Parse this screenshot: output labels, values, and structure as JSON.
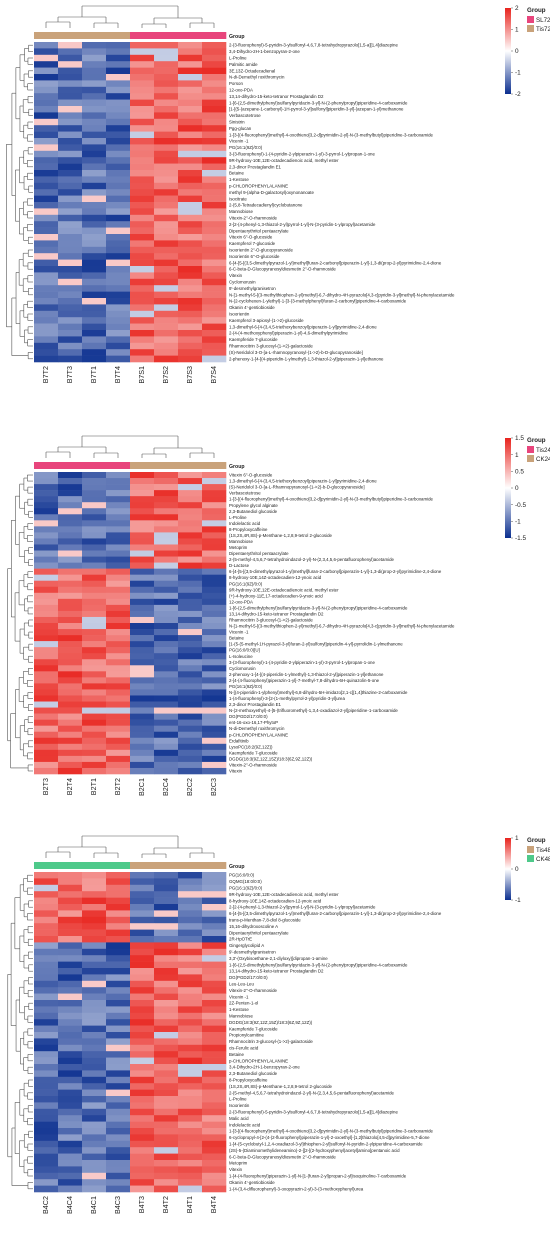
{
  "chart_data": [
    {
      "type": "heatmap",
      "group_title": "Group",
      "groups": [
        {
          "name": "SL72",
          "color": "#e8457c"
        },
        {
          "name": "Tis72",
          "color": "#c9a27a"
        }
      ],
      "sample_groups": [
        "Tis72",
        "Tis72",
        "Tis72",
        "Tis72",
        "SL72",
        "SL72",
        "SL72",
        "SL72"
      ],
      "columns": [
        "B7T2",
        "B7T3",
        "B7T1",
        "B7T4",
        "B7S1",
        "B7S2",
        "B7S3",
        "B7S4"
      ],
      "scale": {
        "min": -2,
        "max": 2,
        "ticks": [
          2,
          1,
          0,
          -1,
          -2
        ]
      },
      "rows": [
        "2-(3-fluorophenyl)-5-pyridin-3-ylsulfonyl-4,6,7,8-tetrahydropyrazolo[1,5-a][1,4]diazepine",
        "3,4-Dihydro-2H-1-benzopyran-2-one",
        "L-Proline",
        "Palmitic amide",
        "3E,13Z-Octadecadienal",
        "N-di-Demethyl roxithromycin",
        "Porson",
        "12-oxo-PDA",
        "13,14-dihydro-15-keto-tetranor Prostaglandin D2",
        "1-[6-(2,5-dimethylphenyl)sulfanylpyridazin-3-yl]-N-(2-phenylpropyl)piperidine-4-carboxamide",
        "[1-[(5-(azepane-1-carbonyl)-1H-pyrrol-3-yl]sulfonyl]piperidin-3-yl]-(azepan-1-yl)methanone",
        "Verbascotetrose",
        "Sinistrin",
        "Pgg-glucan",
        "1-[3-[(4-fluorophenyl)methyl]-4-oxothieno[3,2-d]pyrimidin-2-yl]-N-(3-methylbutyl)piperidine-3-carboxamide",
        "Vicenin -1",
        "PG(16:1(9Z)/0:0)",
        "3-(3-fluorophenyl)-1-(4-pyridin-2-ylpiperazin-1-yl)-3-pyrrol-1-ylpropan-1-one",
        "9R-hydroxy-10E,12E-octadecadienoic acid, methyl ester",
        "2,3-dinor Prostaglandin E1",
        "Betaine",
        "1-Kestose",
        "p-CHLOROPHENYLALANINE",
        "methyl 9-(alpha-D-galactosyl)oxynonanoate",
        "Isocitrate",
        "2-(5,8-Tetradecadienyl)cyclobutanone",
        "Mannobiose",
        "Vitexin-2''-O-rhamnoside",
        "2-[2-(4-phenyl-1,3-thiazol-2-yl)pyrrol-1-yl]-N-(3-pyridin-1-ylpropyl)acetamide",
        "Dipentaerythritol pentaacrylate",
        "Vitexin 6''-O-glucoside",
        "Kaempferol 7-glucoside",
        "Isoorientin 2''-O-glucopyranoside",
        "Isoorientin 6''-O-glucoside",
        "6-[4-[5-[(3,5-dimethylpyrazol-1-yl)methyl]furan-2-carbonyl]piperazin-1-yl]-1,3-di(prop-2-yl)pyrimidine-2,4-dione",
        "6-C-beta-D-Glucopyranosyldiosmetin 2''-O-rhamnoside",
        "Vitexin",
        "Cyclomorusin",
        "9'-desmethylgranisetron",
        "N-[1-methyl-5-[(3-methylthiophen-2-yl)methyl]-6,7-dihydro-4H-pyrazolo[4,3-c]pyridin-3-yl]methyl]-N-phenylacetamide",
        "N-(2-cyclohexen-1-ylethyl)-1-[3-(3-methylphenyl)furan-2-carbonyl]piperidine-4-carboxamide",
        "Okanin 4'-gentiobioside",
        "Isoorientin",
        "Kaempferol 3-apiosyl-(1->2)-glucoside",
        "1,3-dimethyl-6-[4-(3,4,5-triethoxybenzoyl)piperazin-1-yl]pyrimidine-2,4-dione",
        "2-(4-(4-methoxyphenyl)piperazin-1-yl)-4,6-dimethylpyrimidine",
        "Kaempferide 7-glucoside",
        "Rhamnocitrin 3-glucosyl-(1->2)-galactoside",
        "(S)-Neridolol 3-O-[a-L-rhamnopyranosyl-(1->2)-b-D-glucopyranoside]",
        "2-phenoxy-1-[4-[(4-piperidin-1-ylmethyl)-1,3-thiazol-2-yl]piperazin-1-yl]ethanone"
      ],
      "pattern": [
        -1,
        -1,
        -1,
        -1,
        1,
        1,
        1,
        1
      ]
    },
    {
      "type": "heatmap",
      "group_title": "Group",
      "groups": [
        {
          "name": "Tis24",
          "color": "#e8457c"
        },
        {
          "name": "CK24",
          "color": "#c9a27a"
        }
      ],
      "sample_groups": [
        "Tis24",
        "Tis24",
        "Tis24",
        "Tis24",
        "CK24",
        "CK24",
        "CK24",
        "CK24"
      ],
      "columns": [
        "B2T3",
        "B2T4",
        "B2T1",
        "B2T2",
        "B2C1",
        "B2C4",
        "B2C2",
        "B2C3"
      ],
      "scale": {
        "min": -1.5,
        "max": 1.5,
        "ticks": [
          1.5,
          1,
          0.5,
          0,
          -0.5,
          -1,
          -1.5
        ]
      },
      "rows": [
        "Vitexin 6''-O-glucoside",
        "1,3-dimethyl-6-[4-(3,4,5-triethoxybenzoyl)piperazin-1-yl]pyrimidine-2,4-dione",
        "(S)-Neridolol 3-O-[a-L-Rhamnopyranosyl-(1->2)-b-D-glucopyranoside]",
        "Verbascotetrose",
        "1-[3-[(4-fluorophenyl)methyl]-4-oxothieno[3,2-d]pyrimidin-2-yl]-N-(3-methylbutyl)piperidine-3-carboxamide",
        "Propylene glycol alginate",
        "2,3-Butanediol glucoside",
        "L-Proline",
        "Indolelactic acid",
        "8-Propyloxycaffeine",
        "(1S,2S,4R,8S)-p-Menthane-1,2,8,9-tetrol 2-glucoside",
        "Mannobiose",
        "Metoprim",
        "Dipentaerythritol pentaacrylate",
        "2-(5-methyl-4,5,6,7-tetrahydroindazol-2-yl)-N-(2,3,4,5,6-pentafluorophenyl)acetamide",
        "D-Lactose",
        "6-[4-[5-[(3,5-dimethylpyrazol-1-yl)methyl]furan-2-carbonyl]piperazin-1-yl]-1,3-di(prop-2-yl)pyrimidine-2,4-dione",
        "8-hydroxy-10E,14Z-octadecadien-12-ynoic acid",
        "PG(16:1(9Z)/0:0)",
        "9R-hydroxy-10E,12E-octadecadienoic acid, methyl ester",
        "(+)-4-hydroxy-11E,17-octadecadien-9-ynoic acid",
        "12-oxo-PDA",
        "1-[6-(2,5-dimethylphenyl)sulfanylpyridazin-3-yl]-N-(2-phenylpropyl)piperidine-4-carboxamide",
        "13,14-dihydro-15-keto-tetranor Prostaglandin D2",
        "Rhamnocitrin 3-glucosyl-(1->2)-galactoside",
        "N-[1-methyl-5-[(3-methylthiophen-2-yl)methyl]-6,7-dihydro-4H-pyrazolo[4,3-c]pyridin-3-yl]methyl]-N-phenylacetamide",
        "Vicenin -1",
        "Betaine",
        "[1-(5-(5-methyl-1H-pyrazol-3-yl)furan-2-yl)sulfonyl]piperidin-4-yl]-pyrrolidin-1-ylmethanone",
        "PG(16:0/0:0)[U]",
        "L-Isoleucine",
        "3-(3-fluorophenyl)-1-(4-pyridin-2-ylpiperazin-1-yl)-3-pyrrol-1-ylpropan-1-one",
        "Cyclomorusin",
        "2-phenoxy-1-[4-[(4-piperidin-1-ylmethyl)-1,3-thiazol-2-yl]piperazin-1-yl]ethanone",
        "2-[4-(4-fluorophenyl)piperazin-1-yl]-7-methyl-7,8-dihydro-6H-quinazolin-5-one",
        "PG(16:1(9Z)/0:0)",
        "N-[(4-piperidin-1-ylphenyl)methyl]-6,8-dihydro-5H-imidazo[2,1-c][1,4]thiazine-2-carboxamide",
        "1-(4-fluorophenyl)-3-[2-(1-methylpyrrol-2-yl)pyridin-3-yl]urea",
        "2,3-dinor Prostaglandin E1",
        "N-(2-methoxyethyl)-4-[5-(trifluoromethyl)-1,3,4-oxadiazol-2-yl]piperidine-1-carboxamide",
        "DG(PGD2/17:0/0:0)",
        "ent-16-oxo-16,17-PhytoP",
        "N-di-Demethyl roxithromycin",
        "p-CHLOROPHENYLALANINE",
        "Erdafitinib",
        "LysoPC(18:2(9Z,12Z))",
        "Kaempferide 7-glucoside",
        "DGDG(18:3(9Z,12Z,15Z)/18:3(6Z,9Z,12Z))",
        "Vitexin-2''-O-rhamnoside",
        "Vitexin"
      ],
      "pattern": [
        1,
        1,
        1,
        1,
        -1,
        -1,
        -1,
        -1
      ],
      "split_after": 16
    },
    {
      "type": "heatmap",
      "group_title": "Group",
      "groups": [
        {
          "name": "Tis48",
          "color": "#c9a27a"
        },
        {
          "name": "CK48",
          "color": "#4ec98a"
        }
      ],
      "sample_groups": [
        "CK48",
        "CK48",
        "CK48",
        "CK48",
        "Tis48",
        "Tis48",
        "Tis48",
        "Tis48"
      ],
      "columns": [
        "B4C2",
        "B4C4",
        "B4C1",
        "B4C3",
        "B4T3",
        "B4T2",
        "B4T1",
        "B4T4"
      ],
      "scale": {
        "min": -1,
        "max": 1,
        "ticks": [
          1,
          0,
          -1
        ]
      },
      "rows": [
        "PG(16:0/0:0)",
        "GQMG(18:0/0:0)",
        "PG(16:1(9Z)/0:0)",
        "9R-hydroxy-10E,12E-octadecadienoic acid, methyl ester",
        "8-hydroxy-10E,14Z-octadecadien-12-ynoic acid",
        "2-[2-(4-phenyl-1,3-thiazol-2-yl)pyrrol-1-yl]-N-(3-pyridin-1-ylpropyl)acetamide",
        "6-[4-[5-[(3,5-dimethylpyrazol-1-yl)methyl]furan-2-carbonyl]piperazin-1-yl]-1,3-di(prop-2-yl)pyrimidine-2,4-dione",
        "trans-p-Menthan-7,8-diol 8-glucoside",
        "15,16-dihydroxoscoline A",
        "Dipentaerythritol pentaacrylate",
        "2R-HpOTrE",
        "Gingerglycolipid A",
        "9'-desmethylgranisetron",
        "3,3'-(Oxybisoethane-2,1-diyloxy)]dipropan-1-amine",
        "1-[6-(2,5-dimethylphenyl)sulfanylpyridazin-3-yl]-N-(2-phenylpropyl)piperidine-4-carboxamide",
        "13,14-dihydro-15-keto-tetranor Prostaglandin D2",
        "DG(PGD2/17:0/0:0)",
        "Leu-Leu-Leu",
        "Vitexin-2''-O-rhamnoside",
        "Vicenin -1",
        "2Z-Penten-1-ol",
        "1-Kestose",
        "Mannobiose",
        "DGDG(18:3(9Z,12Z,15Z)/18:3(6Z,9Z,12Z))",
        "Kaempferide 7-glucoside",
        "Propionylcarnitine",
        "Rhamnocitrin 3-glucosyl-(1->2)-galactoside",
        "cis-Ferulic acid",
        "Betaine",
        "p-CHLOROPHENYLALANINE",
        "3,4-Dihydro-2H-1-benzopyran-2-one",
        "2,3-Butanediol glucoside",
        "8-Propyloxycaffeine",
        "(1S,2S,4R,8S)-p-Menthane-1,2,8,9-tetrol 2-glucoside",
        "2-(5-methyl-4,5,6,7-tetrahydroindazol-2-yl)-N-(2,3,4,5,6-pentafluorophenyl)acetamide",
        "L-Proline",
        "Isoorientin",
        "2-(3-fluorophenyl)-5-pyridin-3-ylsulfonyl-4,6,7,8-tetrahydropyrazolo[1,5-a][1,4]diazepine",
        "Malic acid",
        "Indolelactic acid",
        "1-[3-[(4-fluorophenyl)methyl]-4-oxothieno[3,2-d]pyrimidin-2-yl]-N-(3-methylbutyl)piperidine-3-carboxamide",
        "6-cyclopropyl-4-[2-(4-(2-fluorophenyl)piperazin-1-yl)-2-oxoethyl]-[1,2]thiazolo[4,5-d]pyrimidine-5,7-dione",
        "1-[4-(5-cyclobutyl-1,2,4-oxadiazol-3-yl)thiophen-2-yl]sulfonyl-N-pyridin-2-ylpiperidine-4-carboxamide",
        "(2S)-5-(Diaminomethylideneamino)-2-[[2-[(2-hydroxyphenyl)acetyl]amino]pentanoic acid",
        "6-C-beta-D-Glucopyranosyldiosmetin 2''-O-rhamnoside",
        "Metoprim",
        "Vitexin",
        "1-[4-(4-fluorophenyl)piperazin-1-yl]-N-[1-(furan-2-yl)propan-2-yl]isoquinoline-7-carboxamide",
        "Okanin 4'-gentiobioside",
        "1-(4-(3,4-difluorophenyl)-3-oxopyrazin-2-yl)-3-(3-methoxyphenyl)urea"
      ],
      "pattern": [
        -1,
        -1,
        -1,
        -1,
        1,
        1,
        1,
        1
      ],
      "split_after": 11
    }
  ]
}
